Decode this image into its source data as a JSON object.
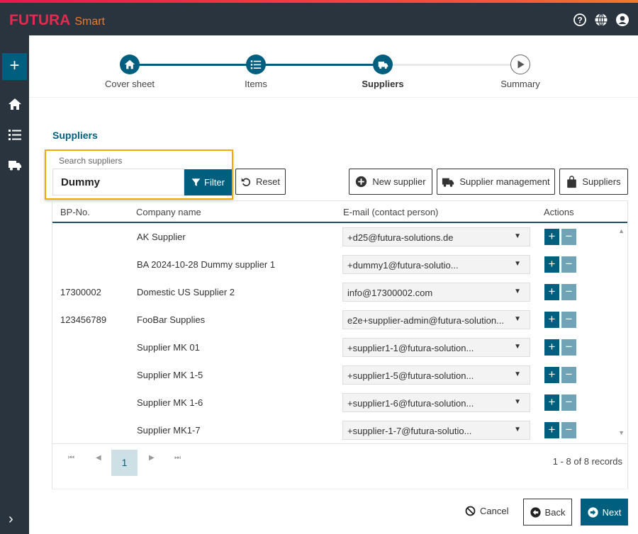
{
  "app": {
    "brand": "FUTURA",
    "brand_sub": "Smart"
  },
  "header_icons": [
    "help-icon",
    "globe-icon",
    "user-icon"
  ],
  "sidebar": {
    "items": [
      "add-icon",
      "home-icon",
      "list-icon",
      "truck-icon"
    ],
    "expand": "›"
  },
  "steps": [
    {
      "label": "Cover sheet",
      "icon": "home-icon",
      "state": "done"
    },
    {
      "label": "Items",
      "icon": "list-icon",
      "state": "done"
    },
    {
      "label": "Suppliers",
      "icon": "truck-icon",
      "state": "active"
    },
    {
      "label": "Summary",
      "icon": "play-icon",
      "state": "pending"
    }
  ],
  "section_title": "Suppliers",
  "search": {
    "label": "Search suppliers",
    "value": "Dummy",
    "filter_label": "Filter",
    "reset_label": "Reset"
  },
  "toolbar": {
    "new_supplier": "New supplier",
    "supplier_management": "Supplier management",
    "suppliers": "Suppliers"
  },
  "table": {
    "columns": [
      "BP-No.",
      "Company name",
      "E-mail (contact person)",
      "Actions"
    ],
    "rows": [
      {
        "bp": "",
        "name": "AK Supplier",
        "email": "+d25@futura-solutions.de"
      },
      {
        "bp": "",
        "name": "BA 2024-10-28 Dummy supplier 1",
        "email": "+dummy1@futura-solutio..."
      },
      {
        "bp": "17300002",
        "name": "Domestic US Supplier 2",
        "email": "info@17300002.com"
      },
      {
        "bp": "123456789",
        "name": "FooBar Supplies",
        "email": "e2e+supplier-admin@futura-solution..."
      },
      {
        "bp": "",
        "name": "Supplier MK 01",
        "email": "+supplier1-1@futura-solution..."
      },
      {
        "bp": "",
        "name": "Supplier MK 1-5",
        "email": "+supplier1-5@futura-solution..."
      },
      {
        "bp": "",
        "name": "Supplier MK 1-6",
        "email": "+supplier1-6@futura-solution..."
      },
      {
        "bp": "",
        "name": "Supplier MK1-7",
        "email": "+supplier-1-7@futura-solutio..."
      }
    ],
    "plus": "+",
    "minus": "−"
  },
  "pager": {
    "page": "1",
    "records": "1 - 8 of 8 records"
  },
  "footer": {
    "cancel": "Cancel",
    "back": "Back",
    "next": "Next"
  },
  "colors": {
    "primary": "#005f7f",
    "header": "#29343f",
    "highlight": "#f5a800",
    "brand": "#e8294f"
  }
}
